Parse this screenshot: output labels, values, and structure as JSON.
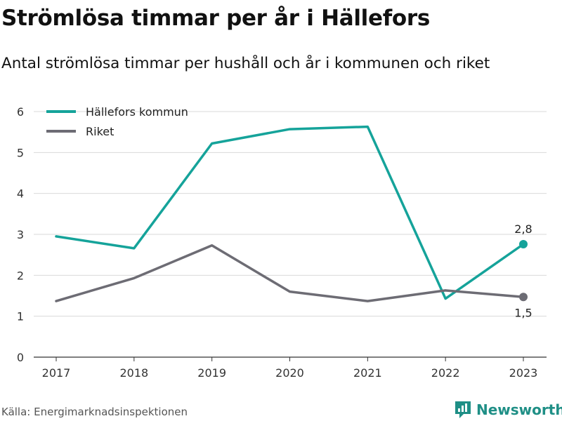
{
  "title": "Strömlösa timmar per år i Hällefors",
  "subtitle": "Antal strömlösa timmar per hushåll och år i kommunen och riket",
  "source": "Källa: Energimarknadsinspektionen",
  "brand": {
    "name": "Newsworthy",
    "icon": "bar-chart-logo-icon",
    "color": "#1f8f86"
  },
  "chart_data": {
    "type": "line",
    "x": [
      "2017",
      "2018",
      "2019",
      "2020",
      "2021",
      "2022",
      "2023"
    ],
    "ylim": [
      0,
      6
    ],
    "yticks": [
      "0",
      "1",
      "2",
      "3",
      "4",
      "5",
      "6"
    ],
    "grid": true,
    "legend": "top-left",
    "series": [
      {
        "name": "Hällefors kommun",
        "color": "#15a39a",
        "values": [
          2.95,
          2.66,
          5.22,
          5.57,
          5.63,
          1.43,
          2.76
        ],
        "end_label": "2,8"
      },
      {
        "name": "Riket",
        "color": "#6d6c74",
        "values": [
          1.37,
          1.93,
          2.73,
          1.6,
          1.37,
          1.63,
          1.47
        ],
        "end_label": "1,5"
      }
    ]
  }
}
